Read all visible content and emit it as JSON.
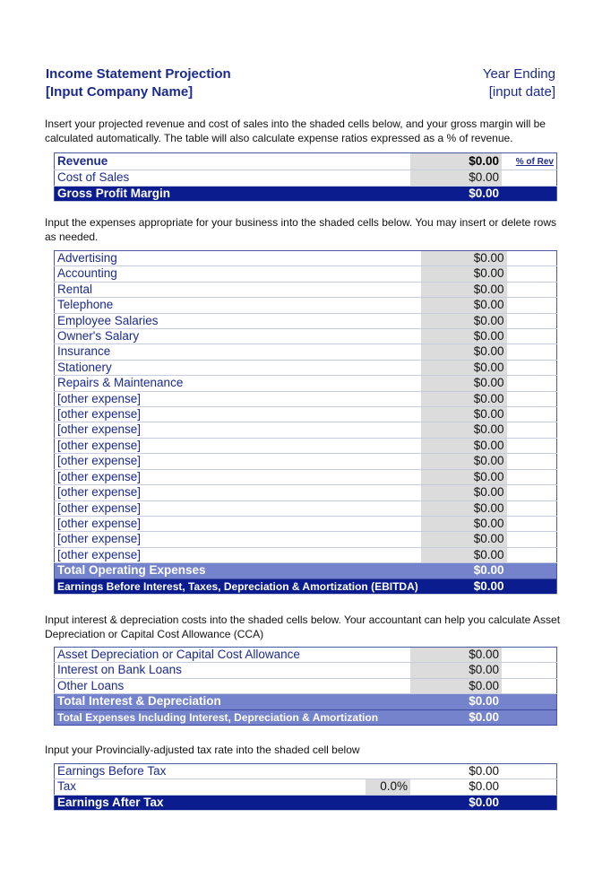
{
  "header": {
    "title": "Income Statement Projection",
    "company": "[Input Company Name]",
    "year_label": "Year Ending",
    "date": "[input date]"
  },
  "notes": {
    "revenue": "Insert your projected revenue and cost of sales into the shaded cells below, and your gross margin will be calculated automatically. The table will also calculate expense ratios expressed as a % of revenue.",
    "expenses": "Input the expenses appropriate for your business into the shaded cells below. You may insert or delete rows as needed.",
    "interest": "Input interest & depreciation costs into the shaded cells below. Your accountant can help you calculate Asset Depreciation or Capital Cost Allowance (CCA)",
    "tax": "Input your Provincially-adjusted tax rate into the shaded cell below"
  },
  "revenue_table": {
    "pct_link": "% of Rev",
    "rows": [
      {
        "label": "Revenue",
        "value": "$0.00"
      },
      {
        "label": "Cost of Sales",
        "value": "$0.00"
      },
      {
        "label": "Gross Profit Margin",
        "value": "$0.00"
      }
    ]
  },
  "expenses": [
    {
      "label": "Advertising",
      "value": "$0.00"
    },
    {
      "label": "Accounting",
      "value": "$0.00"
    },
    {
      "label": "Rental",
      "value": "$0.00"
    },
    {
      "label": "Telephone",
      "value": "$0.00"
    },
    {
      "label": "Employee Salaries",
      "value": "$0.00"
    },
    {
      "label": "Owner's Salary",
      "value": "$0.00"
    },
    {
      "label": "Insurance",
      "value": "$0.00"
    },
    {
      "label": "Stationery",
      "value": "$0.00"
    },
    {
      "label": "Repairs & Maintenance",
      "value": "$0.00"
    },
    {
      "label": "[other expense]",
      "value": "$0.00"
    },
    {
      "label": "[other expense]",
      "value": "$0.00"
    },
    {
      "label": "[other expense]",
      "value": "$0.00"
    },
    {
      "label": "[other expense]",
      "value": "$0.00"
    },
    {
      "label": "[other expense]",
      "value": "$0.00"
    },
    {
      "label": "[other expense]",
      "value": "$0.00"
    },
    {
      "label": "[other expense]",
      "value": "$0.00"
    },
    {
      "label": "[other expense]",
      "value": "$0.00"
    },
    {
      "label": "[other expense]",
      "value": "$0.00"
    },
    {
      "label": "[other expense]",
      "value": "$0.00"
    },
    {
      "label": "[other expense]",
      "value": "$0.00"
    }
  ],
  "expense_totals": [
    {
      "label": "Total Operating Expenses",
      "value": "$0.00"
    },
    {
      "label": "Earnings Before Interest, Taxes, Depreciation & Amortization (EBITDA)",
      "value": "$0.00"
    }
  ],
  "interest": [
    {
      "label": "Asset Depreciation or Capital Cost Allowance",
      "value": "$0.00"
    },
    {
      "label": "Interest on Bank Loans",
      "value": "$0.00"
    },
    {
      "label": "Other Loans",
      "value": "$0.00"
    }
  ],
  "interest_totals": [
    {
      "label": "Total Interest & Depreciation",
      "value": "$0.00"
    },
    {
      "label": "Total Expenses Including Interest, Depreciation & Amortization",
      "value": "$0.00"
    }
  ],
  "tax_table": {
    "ebt_label": "Earnings Before Tax",
    "ebt_value": "$0.00",
    "tax_label": "Tax",
    "tax_rate": "0.0%",
    "tax_value": "$0.00",
    "eat_label": "Earnings After Tax",
    "eat_value": "$0.00"
  },
  "colors": {
    "navy": "#0b1d8e",
    "mid_blue": "#7483cc",
    "shade": "#dcdcdc",
    "text_blue": "#1b2a8f"
  }
}
